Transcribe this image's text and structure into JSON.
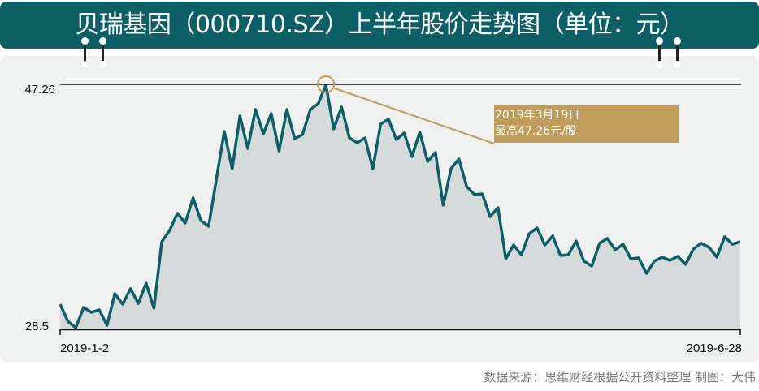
{
  "title": "贝瑞基因（000710.SZ）上半年股价走势图（单位：元）",
  "footer": "数据来源：思维财经根据公开资料整理    制图：大伟",
  "colors": {
    "title_bg": "#0d5f66",
    "line": "#0d5f66",
    "area": "#d5dadb",
    "panel": "#eff0f0",
    "annotation": "#c09d5a"
  },
  "chart_data": {
    "type": "area",
    "title": "",
    "xlabel": "",
    "ylabel": "",
    "x_tick_labels": [
      "2019-1-2",
      "2019-6-28"
    ],
    "y_tick_labels": [
      "47.26",
      "28.5"
    ],
    "ylim": [
      28.5,
      47.26
    ],
    "grid": false,
    "series": [
      {
        "values": [
          30.43,
          29.12,
          28.62,
          30.18,
          29.81,
          30.0,
          28.81,
          31.24,
          30.43,
          31.62,
          30.49,
          32.05,
          30.12,
          35.23,
          36.1,
          37.41,
          36.67,
          38.6,
          36.85,
          36.42,
          40.09,
          43.71,
          40.84,
          44.89,
          42.4,
          45.39,
          43.52,
          45.08,
          42.21,
          45.39,
          43.15,
          43.46,
          45.39,
          45.83,
          47.26,
          43.9,
          45.58,
          43.21,
          42.84,
          43.21,
          40.84,
          44.27,
          44.64,
          43.08,
          43.58,
          41.78,
          43.65,
          41.4,
          42.09,
          38.04,
          40.84,
          41.59,
          39.47,
          38.85,
          38.91,
          37.16,
          37.85,
          33.92,
          34.98,
          34.23,
          35.85,
          36.29,
          34.98,
          35.67,
          34.17,
          34.23,
          35.29,
          33.74,
          33.36,
          35.11,
          35.48,
          34.61,
          35.04,
          33.92,
          33.99,
          32.8,
          33.74,
          34.05,
          33.8,
          34.11,
          33.49,
          34.67,
          35.11,
          34.8,
          34.05,
          35.61,
          35.04,
          35.23
        ]
      }
    ],
    "annotation": {
      "line1": "2019年3月19日",
      "line2": "最高47.26元/股",
      "peak_value": 47.26
    }
  }
}
